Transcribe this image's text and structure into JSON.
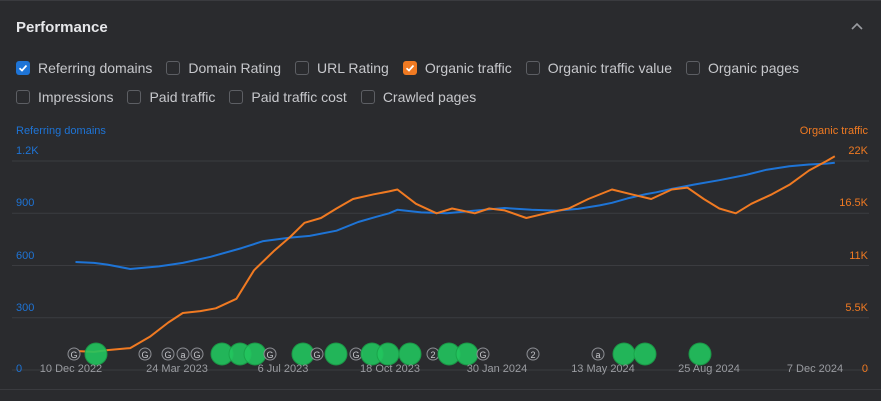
{
  "panel": {
    "title": "Performance"
  },
  "metrics_row1": [
    {
      "label": "Referring domains",
      "checked": true,
      "color": "#1e74d6"
    },
    {
      "label": "Domain Rating",
      "checked": false
    },
    {
      "label": "URL Rating",
      "checked": false
    },
    {
      "label": "Organic traffic",
      "checked": true,
      "color": "#f07a22"
    },
    {
      "label": "Organic traffic value",
      "checked": false
    },
    {
      "label": "Organic pages",
      "checked": false
    }
  ],
  "metrics_row2": [
    {
      "label": "Impressions",
      "checked": false
    },
    {
      "label": "Paid traffic",
      "checked": false
    },
    {
      "label": "Paid traffic cost",
      "checked": false
    },
    {
      "label": "Crawled pages",
      "checked": false
    }
  ],
  "chart_data": {
    "type": "line",
    "left_axis_title": "Referring domains",
    "right_axis_title": "Organic traffic",
    "left_ticks": [
      "0",
      "300",
      "600",
      "900",
      "1.2K"
    ],
    "right_ticks": [
      "0",
      "5.5K",
      "11K",
      "16.5K",
      "22K"
    ],
    "x_ticks": [
      "10 Dec 2022",
      "24 Mar 2023",
      "6 Jul 2023",
      "18 Oct 2023",
      "30 Jan 2024",
      "13 May 2024",
      "25 Aug 2024",
      "7 Dec 2024"
    ],
    "left_ylim": [
      0,
      1200
    ],
    "right_ylim": [
      0,
      22000
    ],
    "grid": true,
    "colors": {
      "referring_domains": "#1e74d6",
      "organic_traffic": "#f07a22"
    },
    "series": [
      {
        "name": "Referring domains",
        "axis": "left",
        "x": [
          "2022-12-10",
          "2022-12-28",
          "2023-01-10",
          "2023-02-01",
          "2023-03-01",
          "2023-03-24",
          "2023-04-20",
          "2023-05-20",
          "2023-06-10",
          "2023-07-06",
          "2023-07-25",
          "2023-08-20",
          "2023-09-10",
          "2023-09-28",
          "2023-10-10",
          "2023-10-18",
          "2023-11-10",
          "2023-12-05",
          "2024-01-01",
          "2024-01-30",
          "2024-02-25",
          "2024-03-20",
          "2024-04-10",
          "2024-05-01",
          "2024-05-13",
          "2024-05-28",
          "2024-06-15",
          "2024-06-25",
          "2024-07-10",
          "2024-08-01",
          "2024-08-25",
          "2024-09-20",
          "2024-10-10",
          "2024-11-01",
          "2024-11-20",
          "2024-12-07",
          "2024-12-15"
        ],
        "values": [
          620,
          615,
          605,
          580,
          595,
          615,
          650,
          700,
          740,
          760,
          770,
          800,
          850,
          880,
          900,
          920,
          905,
          900,
          915,
          930,
          920,
          915,
          925,
          945,
          960,
          985,
          1010,
          1020,
          1040,
          1065,
          1090,
          1120,
          1150,
          1170,
          1180,
          1185,
          1190
        ]
      },
      {
        "name": "Organic traffic",
        "axis": "right",
        "x": [
          "2022-12-10",
          "2022-12-28",
          "2023-01-10",
          "2023-02-01",
          "2023-02-20",
          "2023-03-10",
          "2023-03-24",
          "2023-04-10",
          "2023-04-25",
          "2023-05-15",
          "2023-06-01",
          "2023-06-20",
          "2023-07-06",
          "2023-07-20",
          "2023-08-05",
          "2023-08-20",
          "2023-09-05",
          "2023-09-25",
          "2023-10-10",
          "2023-10-18",
          "2023-11-05",
          "2023-11-25",
          "2023-12-10",
          "2024-01-01",
          "2024-01-15",
          "2024-01-30",
          "2024-02-20",
          "2024-03-10",
          "2024-04-01",
          "2024-04-20",
          "2024-05-13",
          "2024-06-01",
          "2024-06-20",
          "2024-07-10",
          "2024-07-25",
          "2024-08-10",
          "2024-08-25",
          "2024-09-10",
          "2024-09-25",
          "2024-10-15",
          "2024-11-01",
          "2024-11-20",
          "2024-12-07",
          "2024-12-15"
        ],
        "values": [
          2000,
          1900,
          2100,
          2300,
          3500,
          5000,
          6000,
          6200,
          6500,
          7500,
          10500,
          12500,
          14000,
          15500,
          16000,
          17000,
          18000,
          18500,
          18800,
          19000,
          17500,
          16500,
          17000,
          16500,
          17000,
          16800,
          16000,
          16500,
          17000,
          18000,
          19000,
          18500,
          18000,
          19000,
          19200,
          18000,
          17000,
          16500,
          17500,
          18500,
          19500,
          21000,
          22000,
          22500
        ]
      }
    ],
    "event_markers": [
      "G",
      "●",
      "G",
      "G",
      "a",
      "G",
      "●",
      "●",
      "●",
      "G",
      "●",
      "G",
      "●",
      "G",
      "●",
      "●",
      "●",
      "2",
      "●",
      "●",
      "G",
      "2",
      "a",
      "●",
      "●",
      "●"
    ]
  }
}
